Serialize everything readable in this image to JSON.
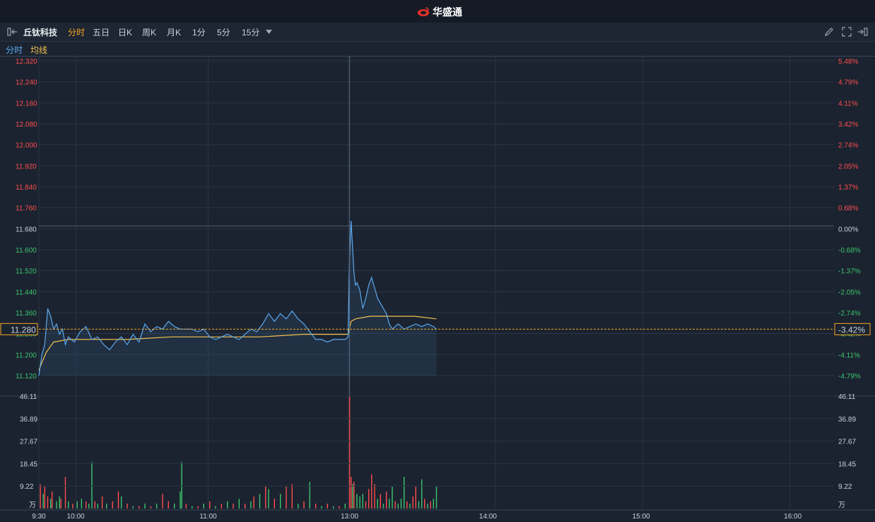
{
  "app": {
    "brand": "华盛通"
  },
  "toolbar": {
    "stock_name": "丘钛科技",
    "periods": [
      "分时",
      "五日",
      "日K",
      "周K",
      "月K",
      "1分",
      "5分",
      "15分"
    ],
    "active_period": "分时"
  },
  "legend": {
    "price_label": "分时",
    "avg_label": "均线"
  },
  "colors": {
    "up": "#ff4d4d",
    "down": "#3ec46d",
    "price_line": "#5aa9f0",
    "avg_line": "#f2c14e",
    "crosshair": "#f5a623"
  },
  "chart_data": {
    "type": "line",
    "prev_close": 11.68,
    "y_ticks": [
      "12.320",
      "12.240",
      "12.160",
      "12.080",
      "12.000",
      "11.920",
      "11.840",
      "11.760",
      "11.680",
      "11.600",
      "11.520",
      "11.440",
      "11.360",
      "11.280",
      "11.200",
      "11.120"
    ],
    "pct_ticks": [
      "5.48%",
      "4.79%",
      "4.11%",
      "3.42%",
      "2.74%",
      "2.05%",
      "1.37%",
      "0.68%",
      "0.00%",
      "-0.68%",
      "-1.37%",
      "-2.05%",
      "-2.74%",
      "-3.42%",
      "-4.11%",
      "-4.79%"
    ],
    "ylim": [
      11.1,
      12.32
    ],
    "x_ticks": [
      "9:30",
      "10:00",
      "11:00",
      "13:00",
      "14:00",
      "15:00",
      "16:00"
    ],
    "crosshair_value": "11.280",
    "crosshair_pct": "-3.42%",
    "vol_ticks": [
      "46.11",
      "36.89",
      "27.67",
      "18.45",
      "9.22"
    ],
    "vol_unit": "万",
    "vol_max": 46.11,
    "price": [
      {
        "t": 0,
        "v": 11.1
      },
      {
        "t": 2,
        "v": 11.18
      },
      {
        "t": 4,
        "v": 11.22
      },
      {
        "t": 6,
        "v": 11.36
      },
      {
        "t": 8,
        "v": 11.33
      },
      {
        "t": 10,
        "v": 11.28
      },
      {
        "t": 12,
        "v": 11.3
      },
      {
        "t": 14,
        "v": 11.26
      },
      {
        "t": 16,
        "v": 11.28
      },
      {
        "t": 18,
        "v": 11.22
      },
      {
        "t": 20,
        "v": 11.25
      },
      {
        "t": 24,
        "v": 11.23
      },
      {
        "t": 28,
        "v": 11.27
      },
      {
        "t": 32,
        "v": 11.29
      },
      {
        "t": 36,
        "v": 11.24
      },
      {
        "t": 40,
        "v": 11.25
      },
      {
        "t": 44,
        "v": 11.22
      },
      {
        "t": 48,
        "v": 11.2
      },
      {
        "t": 52,
        "v": 11.23
      },
      {
        "t": 56,
        "v": 11.25
      },
      {
        "t": 60,
        "v": 11.22
      },
      {
        "t": 64,
        "v": 11.26
      },
      {
        "t": 68,
        "v": 11.23
      },
      {
        "t": 72,
        "v": 11.3
      },
      {
        "t": 76,
        "v": 11.27
      },
      {
        "t": 80,
        "v": 11.29
      },
      {
        "t": 84,
        "v": 11.28
      },
      {
        "t": 88,
        "v": 11.31
      },
      {
        "t": 92,
        "v": 11.29
      },
      {
        "t": 96,
        "v": 11.28
      },
      {
        "t": 100,
        "v": 11.28
      },
      {
        "t": 104,
        "v": 11.28
      },
      {
        "t": 108,
        "v": 11.27
      },
      {
        "t": 112,
        "v": 11.28
      },
      {
        "t": 116,
        "v": 11.25
      },
      {
        "t": 120,
        "v": 11.24
      },
      {
        "t": 124,
        "v": 11.25
      },
      {
        "t": 128,
        "v": 11.26
      },
      {
        "t": 132,
        "v": 11.25
      },
      {
        "t": 136,
        "v": 11.24
      },
      {
        "t": 140,
        "v": 11.26
      },
      {
        "t": 144,
        "v": 11.28
      },
      {
        "t": 148,
        "v": 11.27
      },
      {
        "t": 152,
        "v": 11.3
      },
      {
        "t": 156,
        "v": 11.34
      },
      {
        "t": 160,
        "v": 11.31
      },
      {
        "t": 164,
        "v": 11.34
      },
      {
        "t": 168,
        "v": 11.32
      },
      {
        "t": 172,
        "v": 11.35
      },
      {
        "t": 176,
        "v": 11.32
      },
      {
        "t": 180,
        "v": 11.3
      },
      {
        "t": 184,
        "v": 11.27
      },
      {
        "t": 188,
        "v": 11.24
      },
      {
        "t": 192,
        "v": 11.24
      },
      {
        "t": 196,
        "v": 11.23
      },
      {
        "t": 200,
        "v": 11.24
      },
      {
        "t": 204,
        "v": 11.24
      },
      {
        "t": 208,
        "v": 11.24
      },
      {
        "t": 210,
        "v": 11.25
      },
      {
        "t": 211,
        "v": 11.55
      },
      {
        "t": 212,
        "v": 11.7
      },
      {
        "t": 213,
        "v": 11.6
      },
      {
        "t": 214,
        "v": 11.5
      },
      {
        "t": 215,
        "v": 11.45
      },
      {
        "t": 216,
        "v": 11.46
      },
      {
        "t": 218,
        "v": 11.43
      },
      {
        "t": 220,
        "v": 11.36
      },
      {
        "t": 222,
        "v": 11.4
      },
      {
        "t": 224,
        "v": 11.45
      },
      {
        "t": 226,
        "v": 11.48
      },
      {
        "t": 228,
        "v": 11.44
      },
      {
        "t": 230,
        "v": 11.4
      },
      {
        "t": 232,
        "v": 11.38
      },
      {
        "t": 234,
        "v": 11.36
      },
      {
        "t": 236,
        "v": 11.34
      },
      {
        "t": 238,
        "v": 11.3
      },
      {
        "t": 240,
        "v": 11.28
      },
      {
        "t": 244,
        "v": 11.3
      },
      {
        "t": 248,
        "v": 11.28
      },
      {
        "t": 252,
        "v": 11.29
      },
      {
        "t": 256,
        "v": 11.3
      },
      {
        "t": 260,
        "v": 11.29
      },
      {
        "t": 264,
        "v": 11.3
      },
      {
        "t": 268,
        "v": 11.29
      },
      {
        "t": 270,
        "v": 11.28
      }
    ],
    "avg": [
      {
        "t": 0,
        "v": 11.12
      },
      {
        "t": 2,
        "v": 11.15
      },
      {
        "t": 5,
        "v": 11.19
      },
      {
        "t": 10,
        "v": 11.23
      },
      {
        "t": 20,
        "v": 11.24
      },
      {
        "t": 40,
        "v": 11.24
      },
      {
        "t": 60,
        "v": 11.24
      },
      {
        "t": 90,
        "v": 11.25
      },
      {
        "t": 120,
        "v": 11.25
      },
      {
        "t": 150,
        "v": 11.25
      },
      {
        "t": 180,
        "v": 11.26
      },
      {
        "t": 210,
        "v": 11.26
      },
      {
        "t": 212,
        "v": 11.31
      },
      {
        "t": 215,
        "v": 11.32
      },
      {
        "t": 225,
        "v": 11.33
      },
      {
        "t": 240,
        "v": 11.33
      },
      {
        "t": 255,
        "v": 11.33
      },
      {
        "t": 270,
        "v": 11.32
      }
    ],
    "volume": [
      {
        "t": 1,
        "v": 10,
        "dir": "up"
      },
      {
        "t": 3,
        "v": 6,
        "dir": "down"
      },
      {
        "t": 4,
        "v": 9,
        "dir": "up"
      },
      {
        "t": 6,
        "v": 5,
        "dir": "up"
      },
      {
        "t": 8,
        "v": 4,
        "dir": "down"
      },
      {
        "t": 9,
        "v": 7,
        "dir": "up"
      },
      {
        "t": 12,
        "v": 3,
        "dir": "down"
      },
      {
        "t": 14,
        "v": 5,
        "dir": "down"
      },
      {
        "t": 15,
        "v": 4,
        "dir": "up"
      },
      {
        "t": 18,
        "v": 13,
        "dir": "up"
      },
      {
        "t": 20,
        "v": 3,
        "dir": "down"
      },
      {
        "t": 23,
        "v": 2,
        "dir": "up"
      },
      {
        "t": 26,
        "v": 3,
        "dir": "down"
      },
      {
        "t": 29,
        "v": 4,
        "dir": "down"
      },
      {
        "t": 32,
        "v": 3,
        "dir": "up"
      },
      {
        "t": 34,
        "v": 2,
        "dir": "down"
      },
      {
        "t": 36,
        "v": 19,
        "dir": "down"
      },
      {
        "t": 38,
        "v": 3,
        "dir": "up"
      },
      {
        "t": 40,
        "v": 2,
        "dir": "down"
      },
      {
        "t": 43,
        "v": 5,
        "dir": "up"
      },
      {
        "t": 46,
        "v": 2,
        "dir": "down"
      },
      {
        "t": 50,
        "v": 3,
        "dir": "up"
      },
      {
        "t": 54,
        "v": 7,
        "dir": "up"
      },
      {
        "t": 56,
        "v": 5,
        "dir": "down"
      },
      {
        "t": 60,
        "v": 2,
        "dir": "up"
      },
      {
        "t": 64,
        "v": 1,
        "dir": "down"
      },
      {
        "t": 68,
        "v": 1,
        "dir": "up"
      },
      {
        "t": 72,
        "v": 2,
        "dir": "down"
      },
      {
        "t": 76,
        "v": 1,
        "dir": "up"
      },
      {
        "t": 80,
        "v": 2,
        "dir": "down"
      },
      {
        "t": 84,
        "v": 6,
        "dir": "up"
      },
      {
        "t": 88,
        "v": 3,
        "dir": "up"
      },
      {
        "t": 92,
        "v": 2,
        "dir": "down"
      },
      {
        "t": 96,
        "v": 7,
        "dir": "down"
      },
      {
        "t": 97,
        "v": 19,
        "dir": "down"
      },
      {
        "t": 100,
        "v": 2,
        "dir": "up"
      },
      {
        "t": 104,
        "v": 1,
        "dir": "down"
      },
      {
        "t": 108,
        "v": 1,
        "dir": "up"
      },
      {
        "t": 112,
        "v": 2,
        "dir": "down"
      },
      {
        "t": 116,
        "v": 3,
        "dir": "up"
      },
      {
        "t": 120,
        "v": 1,
        "dir": "down"
      },
      {
        "t": 124,
        "v": 2,
        "dir": "up"
      },
      {
        "t": 128,
        "v": 3,
        "dir": "down"
      },
      {
        "t": 132,
        "v": 2,
        "dir": "up"
      },
      {
        "t": 136,
        "v": 4,
        "dir": "down"
      },
      {
        "t": 140,
        "v": 2,
        "dir": "up"
      },
      {
        "t": 144,
        "v": 3,
        "dir": "down"
      },
      {
        "t": 146,
        "v": 5,
        "dir": "up"
      },
      {
        "t": 150,
        "v": 6,
        "dir": "down"
      },
      {
        "t": 154,
        "v": 9,
        "dir": "up"
      },
      {
        "t": 156,
        "v": 8,
        "dir": "down"
      },
      {
        "t": 160,
        "v": 4,
        "dir": "up"
      },
      {
        "t": 164,
        "v": 6,
        "dir": "down"
      },
      {
        "t": 168,
        "v": 9,
        "dir": "red"
      },
      {
        "t": 172,
        "v": 10,
        "dir": "up"
      },
      {
        "t": 176,
        "v": 2,
        "dir": "down"
      },
      {
        "t": 180,
        "v": 3,
        "dir": "up"
      },
      {
        "t": 184,
        "v": 11,
        "dir": "down"
      },
      {
        "t": 188,
        "v": 2,
        "dir": "up"
      },
      {
        "t": 192,
        "v": 1,
        "dir": "down"
      },
      {
        "t": 196,
        "v": 2,
        "dir": "up"
      },
      {
        "t": 200,
        "v": 1,
        "dir": "down"
      },
      {
        "t": 204,
        "v": 1,
        "dir": "up"
      },
      {
        "t": 208,
        "v": 2,
        "dir": "down"
      },
      {
        "t": 211,
        "v": 46,
        "dir": "up"
      },
      {
        "t": 212,
        "v": 13,
        "dir": "up"
      },
      {
        "t": 213,
        "v": 10,
        "dir": "down"
      },
      {
        "t": 214,
        "v": 11,
        "dir": "up"
      },
      {
        "t": 216,
        "v": 6,
        "dir": "down"
      },
      {
        "t": 218,
        "v": 5,
        "dir": "down"
      },
      {
        "t": 220,
        "v": 6,
        "dir": "down"
      },
      {
        "t": 222,
        "v": 3,
        "dir": "up"
      },
      {
        "t": 224,
        "v": 8,
        "dir": "up"
      },
      {
        "t": 226,
        "v": 14,
        "dir": "up"
      },
      {
        "t": 228,
        "v": 10,
        "dir": "up"
      },
      {
        "t": 230,
        "v": 4,
        "dir": "down"
      },
      {
        "t": 232,
        "v": 6,
        "dir": "up"
      },
      {
        "t": 234,
        "v": 2,
        "dir": "down"
      },
      {
        "t": 236,
        "v": 7,
        "dir": "up"
      },
      {
        "t": 238,
        "v": 4,
        "dir": "down"
      },
      {
        "t": 240,
        "v": 9,
        "dir": "down"
      },
      {
        "t": 242,
        "v": 3,
        "dir": "up"
      },
      {
        "t": 244,
        "v": 2,
        "dir": "down"
      },
      {
        "t": 246,
        "v": 4,
        "dir": "down"
      },
      {
        "t": 248,
        "v": 13,
        "dir": "down"
      },
      {
        "t": 250,
        "v": 3,
        "dir": "up"
      },
      {
        "t": 252,
        "v": 2,
        "dir": "down"
      },
      {
        "t": 254,
        "v": 5,
        "dir": "up"
      },
      {
        "t": 256,
        "v": 9,
        "dir": "up"
      },
      {
        "t": 258,
        "v": 3,
        "dir": "down"
      },
      {
        "t": 260,
        "v": 12,
        "dir": "down"
      },
      {
        "t": 262,
        "v": 4,
        "dir": "up"
      },
      {
        "t": 264,
        "v": 2,
        "dir": "down"
      },
      {
        "t": 266,
        "v": 3,
        "dir": "up"
      },
      {
        "t": 268,
        "v": 4,
        "dir": "down"
      },
      {
        "t": 270,
        "v": 9,
        "dir": "down"
      }
    ]
  }
}
